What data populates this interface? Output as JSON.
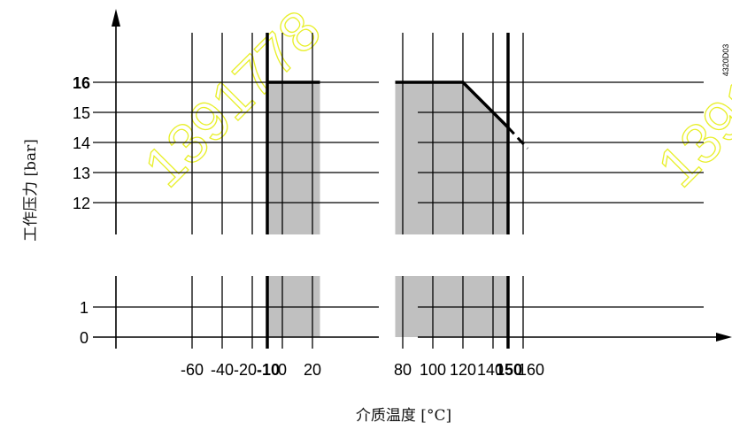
{
  "chart_data": {
    "type": "area",
    "xlabel": "介质温度 [°C]",
    "ylabel": "工作压力 [bar]",
    "figure_code": "4320D03",
    "watermark": "1391778",
    "x_ticks": [
      {
        "value": -60,
        "label": "-60",
        "bold": false
      },
      {
        "value": -40,
        "label": "-40",
        "bold": false
      },
      {
        "value": -20,
        "label": "-20",
        "bold": false
      },
      {
        "value": -10,
        "label": "-10",
        "bold": true
      },
      {
        "value": 0,
        "label": "0",
        "bold": false
      },
      {
        "value": 20,
        "label": "20",
        "bold": false
      },
      {
        "value": 80,
        "label": "80",
        "bold": false
      },
      {
        "value": 100,
        "label": "100",
        "bold": false
      },
      {
        "value": 120,
        "label": "120",
        "bold": false
      },
      {
        "value": 140,
        "label": "140",
        "bold": false
      },
      {
        "value": 150,
        "label": "150",
        "bold": true
      },
      {
        "value": 160,
        "label": "160",
        "bold": false
      }
    ],
    "y_ticks_upper": [
      {
        "value": 16,
        "label": "16",
        "bold": true
      },
      {
        "value": 15,
        "label": "15",
        "bold": false
      },
      {
        "value": 14,
        "label": "14",
        "bold": false
      },
      {
        "value": 13,
        "label": "13",
        "bold": false
      },
      {
        "value": 12,
        "label": "12",
        "bold": false
      }
    ],
    "y_ticks_lower": [
      {
        "value": 1,
        "label": "1",
        "bold": false
      },
      {
        "value": 0,
        "label": "0",
        "bold": false
      }
    ],
    "boundary_lines": [
      -10,
      150
    ],
    "pressure_limit_solid": [
      [
        -10,
        16
      ],
      [
        25,
        16
      ],
      [
        75,
        16
      ],
      [
        120,
        16
      ],
      [
        150,
        14.5
      ]
    ],
    "pressure_limit_dashed": [
      [
        150,
        14.5
      ],
      [
        163,
        13.8
      ]
    ],
    "shaded_ranges": [
      [
        -10,
        25
      ],
      [
        75,
        150
      ]
    ],
    "shade_color": "#c0c0c0",
    "line_color": "#000000",
    "watermark_color": "#e8ef2a"
  }
}
